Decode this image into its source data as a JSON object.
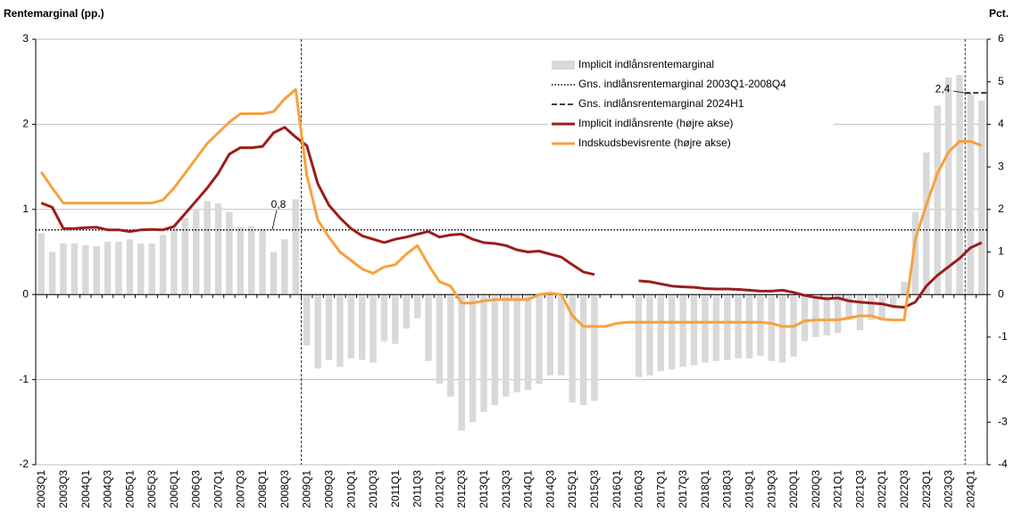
{
  "chart_data": {
    "type": "bar",
    "y_label": "Rentemarginal  (pp.)",
    "y2_label": "Pct.",
    "categories": [
      "2003Q1",
      null,
      "2003Q3",
      null,
      "2004Q1",
      null,
      "2004Q3",
      null,
      "2005Q1",
      null,
      "2005Q3",
      null,
      "2006Q1",
      null,
      "2006Q3",
      null,
      "2007Q1",
      null,
      "2007Q3",
      null,
      "2008Q1",
      null,
      "2008Q3",
      null,
      "2009Q1",
      null,
      "2009Q3",
      null,
      "2010Q1",
      null,
      "2010Q3",
      null,
      "2011Q1",
      null,
      "2011Q3",
      null,
      "2012Q1",
      null,
      "2012Q3",
      null,
      "2013Q1",
      null,
      "2013Q3",
      null,
      "2014Q1",
      null,
      "2014Q3",
      null,
      "2015Q1",
      null,
      "2015Q3",
      null,
      "2016Q1",
      null,
      "2016Q3",
      null,
      "2017Q1",
      null,
      "2017Q3",
      null,
      "2018Q1",
      null,
      "2018Q3",
      null,
      "2019Q1",
      null,
      "2019Q3",
      null,
      "2020Q1",
      null,
      "2020Q3",
      null,
      "2021Q1",
      null,
      "2021Q3",
      null,
      "2022Q1",
      null,
      "2022Q3",
      null,
      "2023Q1",
      null,
      "2023Q3",
      null,
      "2024Q1",
      null
    ],
    "series": [
      {
        "name": "Implicit indlånsrentemarginal",
        "type": "bar",
        "color": "#d9d9d9",
        "values": [
          0.72,
          0.5,
          0.6,
          0.6,
          0.58,
          0.57,
          0.62,
          0.62,
          0.65,
          0.6,
          0.6,
          0.7,
          0.8,
          0.9,
          1.0,
          1.1,
          1.07,
          0.97,
          0.8,
          0.8,
          0.77,
          0.5,
          0.65,
          1.12,
          -0.6,
          -0.87,
          -0.77,
          -0.85,
          -0.75,
          -0.77,
          -0.8,
          -0.55,
          -0.58,
          -0.4,
          -0.28,
          -0.78,
          -1.05,
          -1.2,
          -1.6,
          -1.5,
          -1.38,
          -1.3,
          -1.2,
          -1.15,
          -1.12,
          -1.05,
          -0.95,
          -0.95,
          -1.27,
          -1.3,
          -1.25,
          null,
          null,
          null,
          -0.97,
          -0.95,
          -0.9,
          -0.88,
          -0.85,
          -0.83,
          -0.8,
          -0.78,
          -0.77,
          -0.75,
          -0.75,
          -0.72,
          -0.78,
          -0.8,
          -0.73,
          -0.55,
          -0.5,
          -0.48,
          -0.45,
          -0.3,
          -0.42,
          -0.3,
          -0.3,
          -0.15,
          0.15,
          0.97,
          1.67,
          2.22,
          2.55,
          2.58,
          2.35,
          2.28
        ]
      },
      {
        "name": "Implicit indlånsrente (højre akse)",
        "type": "line",
        "axis": "y2",
        "color": "#9c1c1c",
        "values": [
          2.15,
          2.05,
          1.55,
          1.55,
          1.57,
          1.58,
          1.52,
          1.52,
          1.48,
          1.52,
          1.53,
          1.52,
          1.6,
          1.9,
          2.2,
          2.5,
          2.85,
          3.3,
          3.45,
          3.45,
          3.48,
          3.8,
          3.93,
          3.7,
          3.5,
          2.6,
          2.1,
          1.8,
          1.55,
          1.38,
          1.3,
          1.22,
          1.3,
          1.35,
          1.42,
          1.48,
          1.35,
          1.4,
          1.42,
          1.3,
          1.22,
          1.2,
          1.15,
          1.05,
          1.0,
          1.02,
          0.95,
          0.88,
          0.7,
          0.53,
          0.47,
          null,
          null,
          null,
          0.32,
          0.3,
          0.25,
          0.2,
          0.18,
          0.17,
          0.14,
          0.13,
          0.13,
          0.12,
          0.1,
          0.08,
          0.08,
          0.1,
          0.05,
          -0.02,
          -0.07,
          -0.1,
          -0.08,
          -0.15,
          -0.18,
          -0.2,
          -0.22,
          -0.28,
          -0.3,
          -0.18,
          0.2,
          0.45,
          0.65,
          0.85,
          1.1,
          1.22
        ]
      },
      {
        "name": "Indskudsbevisrente (højre akse)",
        "type": "line",
        "axis": "y2",
        "color": "#f7a13d",
        "values": [
          2.88,
          2.5,
          2.15,
          2.15,
          2.15,
          2.15,
          2.15,
          2.15,
          2.15,
          2.15,
          2.15,
          2.22,
          2.5,
          2.85,
          3.2,
          3.55,
          3.8,
          4.05,
          4.25,
          4.25,
          4.25,
          4.3,
          4.6,
          4.82,
          2.8,
          1.75,
          1.35,
          1.0,
          0.8,
          0.6,
          0.5,
          0.65,
          0.7,
          0.95,
          1.15,
          0.7,
          0.3,
          0.2,
          -0.2,
          -0.2,
          -0.15,
          -0.12,
          -0.12,
          -0.12,
          -0.12,
          0.0,
          0.03,
          0.0,
          -0.5,
          -0.75,
          -0.75,
          -0.75,
          -0.68,
          -0.65,
          -0.65,
          -0.65,
          -0.65,
          -0.65,
          -0.65,
          -0.65,
          -0.65,
          -0.65,
          -0.65,
          -0.65,
          -0.65,
          -0.65,
          -0.68,
          -0.75,
          -0.75,
          -0.62,
          -0.6,
          -0.6,
          -0.6,
          -0.55,
          -0.5,
          -0.5,
          -0.58,
          -0.6,
          -0.6,
          1.3,
          2.1,
          2.85,
          3.35,
          3.6,
          3.6,
          3.5
        ]
      }
    ],
    "reference_lines": [
      {
        "name": "Gns. indlånsrentemarginal 2003Q1-2008Q4",
        "value": 0.76,
        "label": "0,8",
        "style": "dotted",
        "color": "#000000"
      },
      {
        "name": "Gns. indlånsrentemarginal 2024H1",
        "value": 2.37,
        "label": "2,4",
        "style": "dashed",
        "color": "#000000"
      }
    ],
    "ylim": [
      -2,
      3
    ],
    "yticks": [
      -2,
      -1,
      0,
      1,
      2,
      3
    ],
    "y2lim": [
      -4,
      6
    ],
    "y2ticks": [
      -4,
      -3,
      -2,
      -1,
      0,
      1,
      2,
      3,
      4,
      5,
      6
    ],
    "grid": true
  }
}
